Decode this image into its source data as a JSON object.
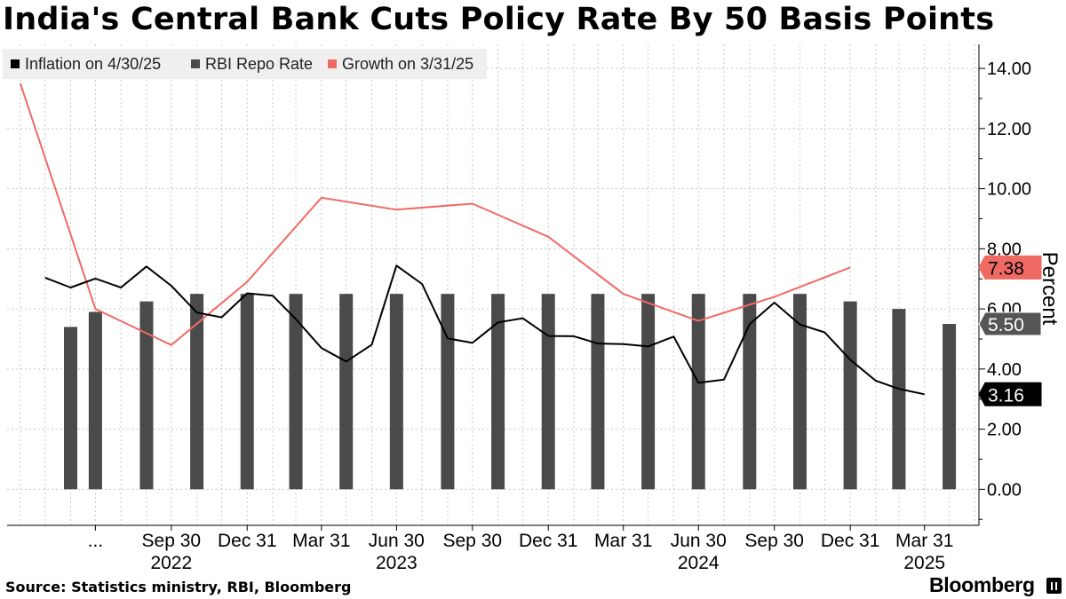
{
  "title": "India's Central Bank Cuts Policy Rate By 50 Basis Points",
  "source": "Source: Statistics ministry, RBI, Bloomberg",
  "brand": "Bloomberg",
  "colors": {
    "inflation": "#000000",
    "repo": "#4a4a4a",
    "growth": "#f06a64",
    "grid": "#c8c8c8"
  },
  "chart_data": {
    "type": "bar",
    "ylabel": "Percent",
    "ylim": [
      -1.2,
      14.8
    ],
    "y_ticks": [
      "0.00",
      "2.00",
      "4.00",
      "6.00",
      "8.00",
      "10.00",
      "12.00",
      "14.00"
    ],
    "y_tick_values": [
      0,
      2,
      4,
      6,
      8,
      10,
      12,
      14
    ],
    "y_axis_position": "right",
    "grid": true,
    "legend_position": "top-left",
    "x_ticks": [
      {
        "date": "2022-06-30",
        "label": "...",
        "year": ""
      },
      {
        "date": "2022-09-30",
        "label": "Sep 30",
        "year": "2022"
      },
      {
        "date": "2022-12-31",
        "label": "Dec 31",
        "year": ""
      },
      {
        "date": "2023-03-31",
        "label": "Mar 31",
        "year": ""
      },
      {
        "date": "2023-06-30",
        "label": "Jun 30",
        "year": "2023"
      },
      {
        "date": "2023-09-30",
        "label": "Sep 30",
        "year": ""
      },
      {
        "date": "2023-12-31",
        "label": "Dec 31",
        "year": ""
      },
      {
        "date": "2024-03-31",
        "label": "Mar 31",
        "year": ""
      },
      {
        "date": "2024-06-30",
        "label": "Jun 30",
        "year": "2024"
      },
      {
        "date": "2024-09-30",
        "label": "Sep 30",
        "year": ""
      },
      {
        "date": "2024-12-31",
        "label": "Dec 31",
        "year": ""
      },
      {
        "date": "2025-03-31",
        "label": "Mar 31",
        "year": "2025"
      }
    ],
    "series": [
      {
        "name": "Inflation on 4/30/25",
        "type": "line",
        "last_label": "3.16",
        "points": [
          [
            "2022-04-30",
            7.04
          ],
          [
            "2022-05-31",
            6.71
          ],
          [
            "2022-06-30",
            7.01
          ],
          [
            "2022-07-31",
            6.71
          ],
          [
            "2022-08-31",
            7.41
          ],
          [
            "2022-09-30",
            6.77
          ],
          [
            "2022-10-31",
            5.88
          ],
          [
            "2022-11-30",
            5.72
          ],
          [
            "2022-12-31",
            6.52
          ],
          [
            "2023-01-31",
            6.44
          ],
          [
            "2023-02-28",
            5.66
          ],
          [
            "2023-03-31",
            4.7
          ],
          [
            "2023-04-30",
            4.25
          ],
          [
            "2023-05-31",
            4.81
          ],
          [
            "2023-06-30",
            7.44
          ],
          [
            "2023-07-31",
            6.83
          ],
          [
            "2023-08-31",
            5.02
          ],
          [
            "2023-09-30",
            4.87
          ],
          [
            "2023-10-31",
            5.55
          ],
          [
            "2023-11-30",
            5.69
          ],
          [
            "2023-12-31",
            5.1
          ],
          [
            "2024-01-31",
            5.09
          ],
          [
            "2024-02-29",
            4.85
          ],
          [
            "2024-03-31",
            4.83
          ],
          [
            "2024-04-30",
            4.75
          ],
          [
            "2024-05-31",
            5.08
          ],
          [
            "2024-06-30",
            3.54
          ],
          [
            "2024-07-31",
            3.65
          ],
          [
            "2024-08-31",
            5.49
          ],
          [
            "2024-09-30",
            6.21
          ],
          [
            "2024-10-31",
            5.48
          ],
          [
            "2024-11-30",
            5.22
          ],
          [
            "2024-12-31",
            4.31
          ],
          [
            "2025-01-31",
            3.61
          ],
          [
            "2025-02-28",
            3.34
          ],
          [
            "2025-03-31",
            3.16
          ]
        ]
      },
      {
        "name": "RBI Repo Rate",
        "type": "bar",
        "last_label": "5.50",
        "points": [
          [
            "2022-05-31",
            5.4
          ],
          [
            "2022-06-30",
            5.9
          ],
          [
            "2022-08-31",
            6.25
          ],
          [
            "2022-10-31",
            6.5
          ],
          [
            "2022-12-31",
            6.5
          ],
          [
            "2023-02-28",
            6.5
          ],
          [
            "2023-04-30",
            6.5
          ],
          [
            "2023-06-30",
            6.5
          ],
          [
            "2023-08-31",
            6.5
          ],
          [
            "2023-10-31",
            6.5
          ],
          [
            "2023-12-31",
            6.5
          ],
          [
            "2024-02-29",
            6.5
          ],
          [
            "2024-04-30",
            6.5
          ],
          [
            "2024-06-30",
            6.5
          ],
          [
            "2024-08-31",
            6.5
          ],
          [
            "2024-10-31",
            6.5
          ],
          [
            "2024-12-31",
            6.25
          ],
          [
            "2025-02-28",
            6.0
          ],
          [
            "2025-04-30",
            5.5
          ]
        ]
      },
      {
        "name": "Growth on 3/31/25",
        "type": "line",
        "last_label": "7.38",
        "points": [
          [
            "2022-03-31",
            13.5
          ],
          [
            "2022-06-30",
            6.0
          ],
          [
            "2022-09-30",
            4.8
          ],
          [
            "2022-12-31",
            6.9
          ],
          [
            "2023-03-31",
            9.7
          ],
          [
            "2023-06-30",
            9.3
          ],
          [
            "2023-09-30",
            9.5
          ],
          [
            "2023-12-31",
            8.4
          ],
          [
            "2024-03-31",
            6.5
          ],
          [
            "2024-06-30",
            5.6
          ],
          [
            "2024-09-30",
            6.4
          ],
          [
            "2024-12-31",
            7.38
          ]
        ]
      }
    ]
  }
}
